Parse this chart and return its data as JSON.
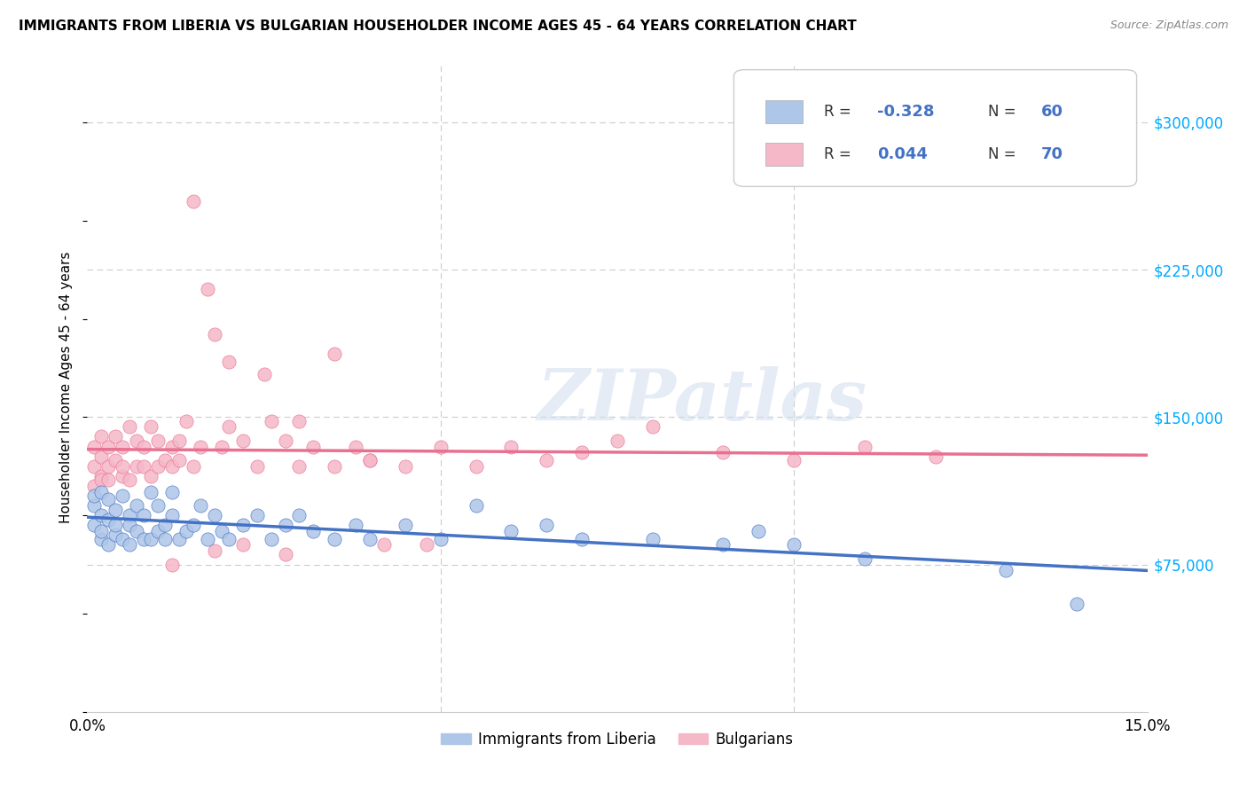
{
  "title": "IMMIGRANTS FROM LIBERIA VS BULGARIAN HOUSEHOLDER INCOME AGES 45 - 64 YEARS CORRELATION CHART",
  "source": "Source: ZipAtlas.com",
  "ylabel": "Householder Income Ages 45 - 64 years",
  "xlim": [
    0.0,
    0.15
  ],
  "ylim": [
    0,
    330000
  ],
  "yticks": [
    75000,
    150000,
    225000,
    300000
  ],
  "ytick_labels": [
    "$75,000",
    "$150,000",
    "$225,000",
    "$300,000"
  ],
  "legend_labels": [
    "Immigrants from Liberia",
    "Bulgarians"
  ],
  "color_liberia": "#aec6e8",
  "color_bulgarians": "#f5b8c8",
  "color_liberia_line": "#4472c4",
  "color_bulgarians_line": "#e87090",
  "color_yticks": "#00aaff",
  "watermark_text": "ZIPatlas",
  "liberia_x": [
    0.001,
    0.001,
    0.001,
    0.002,
    0.002,
    0.002,
    0.002,
    0.003,
    0.003,
    0.003,
    0.004,
    0.004,
    0.004,
    0.005,
    0.005,
    0.006,
    0.006,
    0.006,
    0.007,
    0.007,
    0.008,
    0.008,
    0.009,
    0.009,
    0.01,
    0.01,
    0.011,
    0.011,
    0.012,
    0.012,
    0.013,
    0.014,
    0.015,
    0.016,
    0.017,
    0.018,
    0.019,
    0.02,
    0.022,
    0.024,
    0.026,
    0.028,
    0.03,
    0.032,
    0.035,
    0.038,
    0.04,
    0.045,
    0.05,
    0.055,
    0.06,
    0.065,
    0.07,
    0.08,
    0.09,
    0.095,
    0.1,
    0.11,
    0.13,
    0.14
  ],
  "liberia_y": [
    105000,
    95000,
    110000,
    88000,
    100000,
    112000,
    92000,
    85000,
    98000,
    108000,
    90000,
    103000,
    95000,
    88000,
    110000,
    100000,
    85000,
    95000,
    92000,
    105000,
    88000,
    100000,
    112000,
    88000,
    92000,
    105000,
    88000,
    95000,
    100000,
    112000,
    88000,
    92000,
    95000,
    105000,
    88000,
    100000,
    92000,
    88000,
    95000,
    100000,
    88000,
    95000,
    100000,
    92000,
    88000,
    95000,
    88000,
    95000,
    88000,
    105000,
    92000,
    95000,
    88000,
    88000,
    85000,
    92000,
    85000,
    78000,
    72000,
    55000
  ],
  "bulgarians_x": [
    0.001,
    0.001,
    0.001,
    0.002,
    0.002,
    0.002,
    0.002,
    0.003,
    0.003,
    0.003,
    0.004,
    0.004,
    0.005,
    0.005,
    0.005,
    0.006,
    0.006,
    0.007,
    0.007,
    0.008,
    0.008,
    0.009,
    0.009,
    0.01,
    0.01,
    0.011,
    0.012,
    0.012,
    0.013,
    0.013,
    0.014,
    0.015,
    0.016,
    0.017,
    0.018,
    0.019,
    0.02,
    0.022,
    0.024,
    0.026,
    0.028,
    0.03,
    0.032,
    0.035,
    0.038,
    0.04,
    0.042,
    0.045,
    0.048,
    0.05,
    0.055,
    0.06,
    0.065,
    0.07,
    0.075,
    0.08,
    0.09,
    0.1,
    0.11,
    0.12,
    0.015,
    0.02,
    0.025,
    0.03,
    0.035,
    0.04,
    0.012,
    0.018,
    0.022,
    0.028
  ],
  "bulgarians_y": [
    125000,
    115000,
    135000,
    120000,
    130000,
    118000,
    140000,
    125000,
    135000,
    118000,
    128000,
    140000,
    120000,
    135000,
    125000,
    118000,
    145000,
    125000,
    138000,
    125000,
    135000,
    120000,
    145000,
    125000,
    138000,
    128000,
    135000,
    125000,
    138000,
    128000,
    148000,
    125000,
    135000,
    215000,
    192000,
    135000,
    145000,
    138000,
    125000,
    148000,
    138000,
    148000,
    135000,
    125000,
    135000,
    128000,
    85000,
    125000,
    85000,
    135000,
    125000,
    135000,
    128000,
    132000,
    138000,
    145000,
    132000,
    128000,
    135000,
    130000,
    260000,
    178000,
    172000,
    125000,
    182000,
    128000,
    75000,
    82000,
    85000,
    80000
  ]
}
